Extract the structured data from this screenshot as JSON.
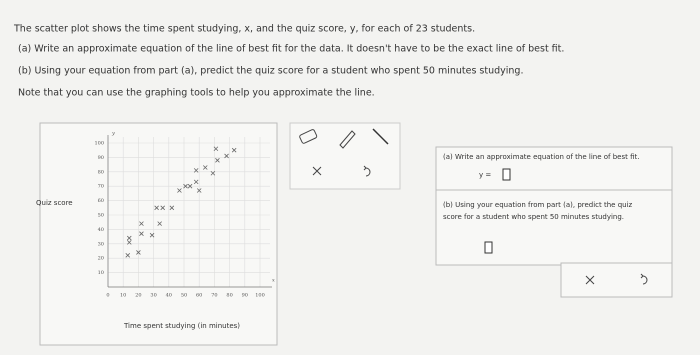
{
  "question": {
    "intro": "The scatter plot shows the time spent studying, x, and the quiz score, y, for each of 23 students.",
    "part_a": "(a) Write an approximate equation of the line of best fit for the data. It doesn't have to be the exact line of best fit.",
    "part_b": "(b) Using your equation from part (a), predict the quiz score for a student who spent 50 minutes studying.",
    "note": "Note that you can use the graphing tools to help you approximate the line."
  },
  "chart_data": {
    "type": "scatter",
    "x_label": "Time spent studying (in minutes)",
    "y_label": "Quiz score",
    "x_axis_letter": "x",
    "y_axis_letter": "y",
    "x": [
      13,
      20,
      14,
      14,
      22,
      29,
      22,
      34,
      32,
      36,
      42,
      47,
      51,
      54,
      58,
      60,
      58,
      64,
      69,
      72,
      71,
      78,
      83
    ],
    "values": [
      22,
      24,
      31,
      34,
      37,
      36,
      44,
      44,
      55,
      55,
      55,
      67,
      70,
      70,
      73,
      67,
      81,
      83,
      79,
      88,
      96,
      91,
      95
    ],
    "xlim": [
      0,
      100
    ],
    "ylim": [
      0,
      100
    ],
    "xticks": [
      0,
      10,
      20,
      30,
      40,
      50,
      60,
      70,
      80,
      90,
      100
    ],
    "yticks": [
      10,
      20,
      30,
      40,
      50,
      60,
      70,
      80,
      90,
      100
    ],
    "grid": true,
    "color": "#666666"
  },
  "answer_panel": {
    "part_a": "(a) Write an approximate equation of the line of best fit.",
    "equation_prefix": "y =",
    "part_b_line1": "(b) Using your equation from part (a), predict the quiz",
    "part_b_line2": "score for a student who spent 50 minutes studying."
  }
}
